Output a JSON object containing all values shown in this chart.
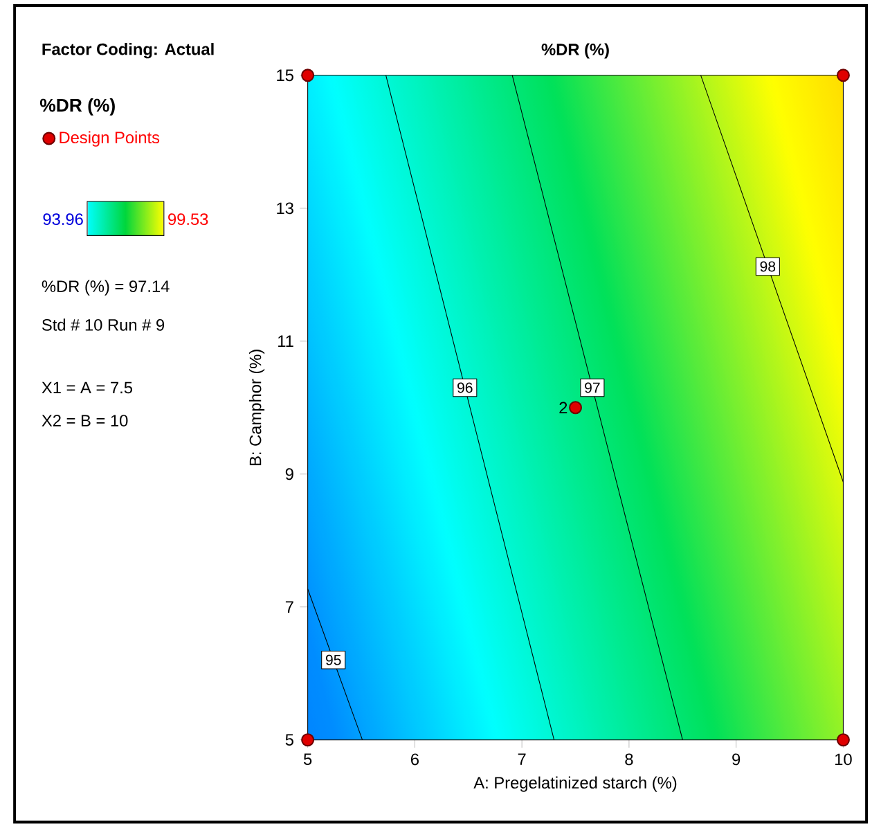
{
  "chart_data": {
    "type": "line",
    "title": "%DR (%)",
    "xlabel": "A: Pregelatinized starch (%)",
    "ylabel": "B: Camphor (%)",
    "legend_title": "%DR (%)",
    "xlim": [
      5,
      10
    ],
    "ylim": [
      5,
      15
    ],
    "xticks": [
      5,
      6,
      7,
      8,
      9,
      10
    ],
    "yticks": [
      5,
      7,
      9,
      11,
      13,
      15
    ],
    "legend": "left",
    "annotations": [
      "Factor Coding: Actual",
      "%DR (%) = 97.14",
      "Std # 10 Run # 9",
      "X1 = A = 7.5",
      "X2 = B = 10",
      {
        "text": "2",
        "x": 7.5,
        "y": 10
      },
      "93.96",
      "99.53"
    ],
    "series": [
      {
        "name": "95",
        "color": "#000000",
        "x": [
          5,
          5.51
        ],
        "values": [
          7.27,
          5
        ]
      },
      {
        "name": "96",
        "color": "#000000",
        "x": [
          5.73,
          7.3
        ],
        "values": [
          15,
          5
        ]
      },
      {
        "name": "97",
        "color": "#000000",
        "x": [
          6.91,
          8.5
        ],
        "values": [
          15,
          5
        ]
      },
      {
        "name": "98",
        "color": "#000000",
        "x": [
          8.67,
          10
        ],
        "values": [
          15,
          8.88
        ]
      },
      {
        "type": "scatter",
        "name": "Design Points",
        "color": "#e00000",
        "x": [
          5,
          10,
          5,
          10,
          7.5
        ],
        "values": [
          5,
          5,
          15,
          15,
          10
        ]
      }
    ]
  }
}
